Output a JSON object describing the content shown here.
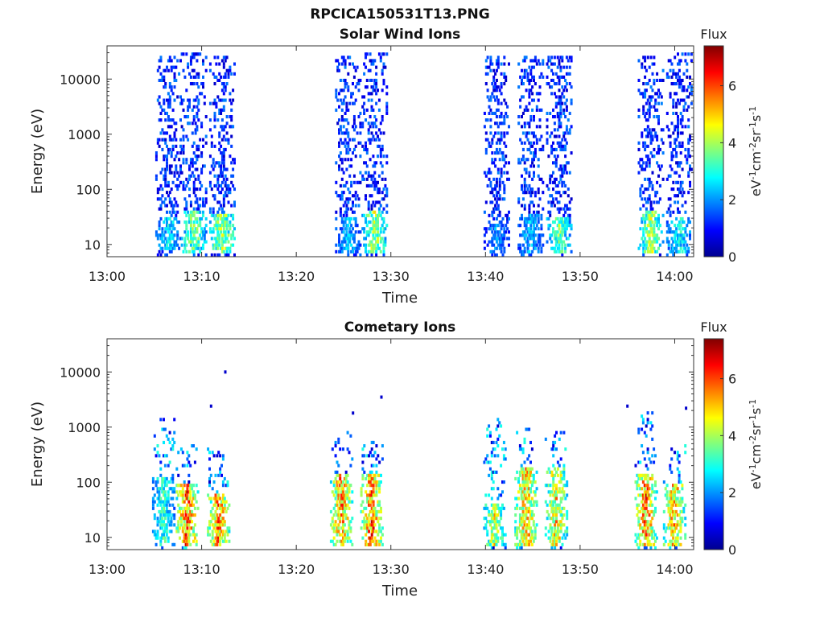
{
  "page_title": "RPCICA150531T13.PNG",
  "chart_data": [
    {
      "type": "heatmap",
      "title": "Solar Wind Ions",
      "xlabel": "Time",
      "ylabel": "Energy (eV)",
      "x_ticks": [
        "13:00",
        "13:10",
        "13:20",
        "13:30",
        "13:40",
        "13:50",
        "14:00"
      ],
      "xlim": [
        "13:00",
        "14:02"
      ],
      "y_scale": "log",
      "ylim": [
        6,
        40000
      ],
      "y_ticks": [
        10,
        100,
        1000,
        10000
      ],
      "y_tick_labels": [
        "10",
        "100",
        "1000",
        "10000"
      ],
      "colorbar": {
        "title": "Flux",
        "unit": "eV-1cm-2sr-1s-1",
        "range": [
          0,
          7.4
        ],
        "ticks": [
          0,
          2,
          4,
          6
        ],
        "tick_labels": [
          "0",
          "2",
          "4",
          "6"
        ],
        "colormap": "jet"
      },
      "bursts": [
        {
          "time": "13:06.5",
          "e_max": 25000,
          "core_low": 8,
          "core_high": 30,
          "peak_flux": 3.4
        },
        {
          "time": "13:09.2",
          "e_max": 30000,
          "core_low": 7,
          "core_high": 40,
          "peak_flux": 4.6
        },
        {
          "time": "13:12.2",
          "e_max": 28000,
          "core_low": 7,
          "core_high": 35,
          "peak_flux": 5.2
        },
        {
          "time": "13:25.5",
          "e_max": 28000,
          "core_low": 7,
          "core_high": 30,
          "peak_flux": 3.0
        },
        {
          "time": "13:28.3",
          "e_max": 30000,
          "core_low": 7,
          "core_high": 40,
          "peak_flux": 5.0
        },
        {
          "time": "13:41.2",
          "e_max": 25000,
          "core_low": 7,
          "core_high": 25,
          "peak_flux": 2.6
        },
        {
          "time": "13:44.8",
          "e_max": 28000,
          "core_low": 7,
          "core_high": 35,
          "peak_flux": 3.0
        },
        {
          "time": "13:47.8",
          "e_max": 25000,
          "core_low": 7,
          "core_high": 30,
          "peak_flux": 4.4
        },
        {
          "time": "13:57.5",
          "e_max": 28000,
          "core_low": 7,
          "core_high": 40,
          "peak_flux": 5.0
        },
        {
          "time": "14:00.5",
          "e_max": 30000,
          "core_low": 7,
          "core_high": 30,
          "peak_flux": 3.6
        }
      ]
    },
    {
      "type": "heatmap",
      "title": "Cometary Ions",
      "xlabel": "Time",
      "ylabel": "Energy (eV)",
      "x_ticks": [
        "13:00",
        "13:10",
        "13:20",
        "13:30",
        "13:40",
        "13:50",
        "14:00"
      ],
      "xlim": [
        "13:00",
        "14:02"
      ],
      "y_scale": "log",
      "ylim": [
        6,
        40000
      ],
      "y_ticks": [
        10,
        100,
        1000,
        10000
      ],
      "y_tick_labels": [
        "10",
        "100",
        "1000",
        "10000"
      ],
      "colorbar": {
        "title": "Flux",
        "unit": "eV-1cm-2sr-1s-1",
        "range": [
          0,
          7.4
        ],
        "ticks": [
          0,
          2,
          4,
          6
        ],
        "tick_labels": [
          "0",
          "2",
          "4",
          "6"
        ],
        "colormap": "jet"
      },
      "bursts": [
        {
          "time": "13:06.0",
          "e_max": 1500,
          "core_low": 7,
          "core_high": 120,
          "peak_flux": 4.0
        },
        {
          "time": "13:08.5",
          "e_max": 500,
          "core_low": 7,
          "core_high": 90,
          "peak_flux": 7.2
        },
        {
          "time": "13:11.8",
          "e_max": 400,
          "core_low": 7,
          "core_high": 60,
          "peak_flux": 6.8
        },
        {
          "time": "13:24.8",
          "e_max": 800,
          "core_low": 7,
          "core_high": 150,
          "peak_flux": 6.8
        },
        {
          "time": "13:28.0",
          "e_max": 600,
          "core_low": 7,
          "core_high": 150,
          "peak_flux": 7.2
        },
        {
          "time": "13:41.0",
          "e_max": 1500,
          "core_low": 7,
          "core_high": 40,
          "peak_flux": 5.5
        },
        {
          "time": "13:44.3",
          "e_max": 1000,
          "core_low": 7,
          "core_high": 200,
          "peak_flux": 6.5
        },
        {
          "time": "13:47.5",
          "e_max": 800,
          "core_low": 7,
          "core_high": 200,
          "peak_flux": 6.0
        },
        {
          "time": "13:57.0",
          "e_max": 2000,
          "core_low": 7,
          "core_high": 150,
          "peak_flux": 7.0
        },
        {
          "time": "14:00.0",
          "e_max": 500,
          "core_low": 7,
          "core_high": 100,
          "peak_flux": 6.5
        }
      ],
      "isolated_points": [
        {
          "time": "13:11.0",
          "energy": 2400
        },
        {
          "time": "13:12.5",
          "energy": 10000
        },
        {
          "time": "13:29.0",
          "energy": 3500
        },
        {
          "time": "13:26.0",
          "energy": 1800
        },
        {
          "time": "13:55.0",
          "energy": 2400
        },
        {
          "time": "14:01.2",
          "energy": 2200
        }
      ]
    }
  ]
}
